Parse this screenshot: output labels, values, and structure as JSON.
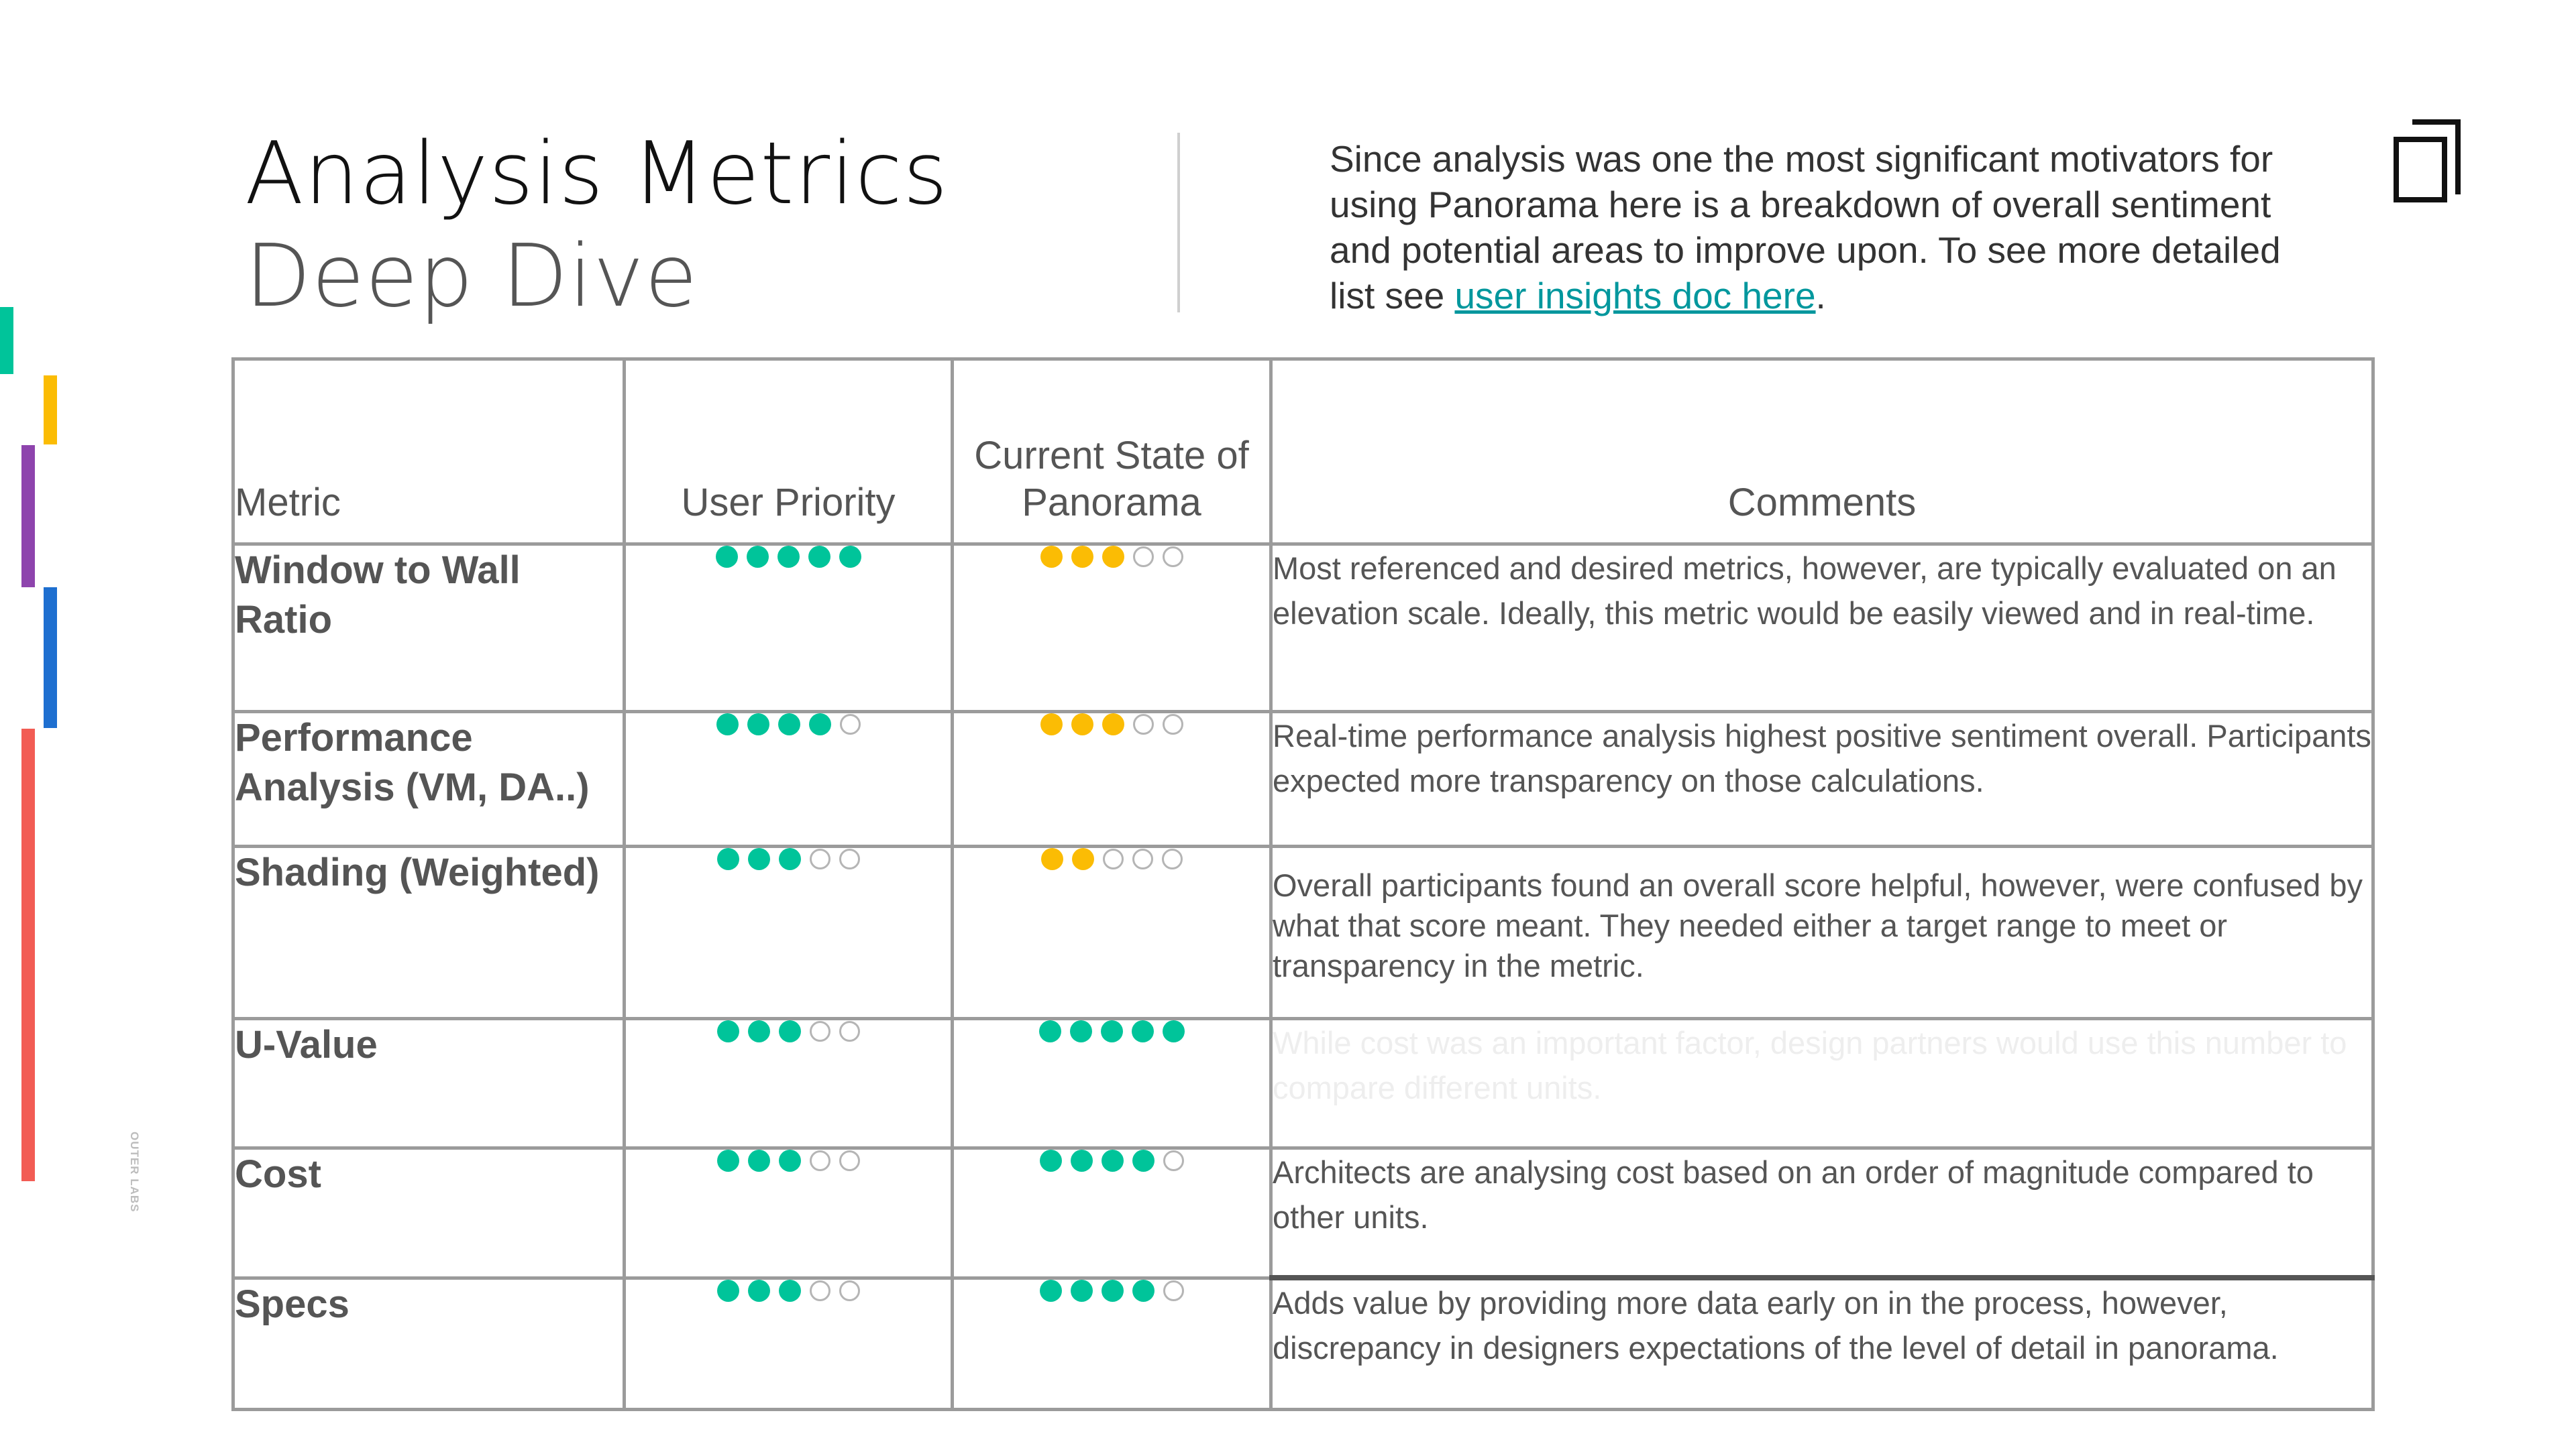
{
  "header": {
    "title_line1": "Analysis Metrics",
    "title_line2": "Deep Dive",
    "intro_text": "Since analysis was one the most significant motivators for using Panorama here is a breakdown of overall sentiment and potential areas to improve upon. To see more detailed list see ",
    "intro_link": "user insights doc here",
    "intro_end": "."
  },
  "sidebar_label": "OUTER LABS",
  "logo_icon": "outer-labs-logo-icon",
  "colors": {
    "teal": "#00c49a",
    "yellow": "#fbbc04",
    "accent_bars": [
      "#00c49a",
      "#fbbc04",
      "#8e44ad",
      "#1e6fd0",
      "#f25c54"
    ]
  },
  "table": {
    "headers": {
      "metric": "Metric",
      "user_priority": "User Priority",
      "current_state": "Current State of Panorama",
      "comments": "Comments"
    },
    "rows": [
      {
        "metric": "Window to Wall Ratio",
        "user_priority": 5,
        "current_state": 3,
        "current_color": "yellow",
        "comment": "Most referenced and desired metrics, however, are typically evaluated on an elevation scale. Ideally, this metric would be easily viewed and in real-time."
      },
      {
        "metric": "Performance Analysis (VM, DA..)",
        "user_priority": 4,
        "current_state": 3,
        "current_color": "yellow",
        "comment": "Real-time performance analysis highest positive sentiment overall. Participants expected more transparency on those calculations."
      },
      {
        "metric": "Shading (Weighted)",
        "user_priority": 3,
        "current_state": 2,
        "current_color": "yellow",
        "comment": "Overall participants found an overall score helpful, however, were confused by what that score meant. They needed either a target range to meet or transparency in the metric."
      },
      {
        "metric": "U-Value",
        "user_priority": 3,
        "current_state": 5,
        "current_color": "teal",
        "comment": "While cost was an important factor, design partners would use this number to compare different units."
      },
      {
        "metric": "Cost",
        "user_priority": 3,
        "current_state": 4,
        "current_color": "teal",
        "comment": "Architects are analysing cost based on an order of magnitude compared to other units."
      },
      {
        "metric": "Specs",
        "user_priority": 3,
        "current_state": 4,
        "current_color": "teal",
        "comment": "Adds value by providing more data early on in the process, however, discrepancy in designers expectations of the level of detail in panorama."
      }
    ]
  }
}
